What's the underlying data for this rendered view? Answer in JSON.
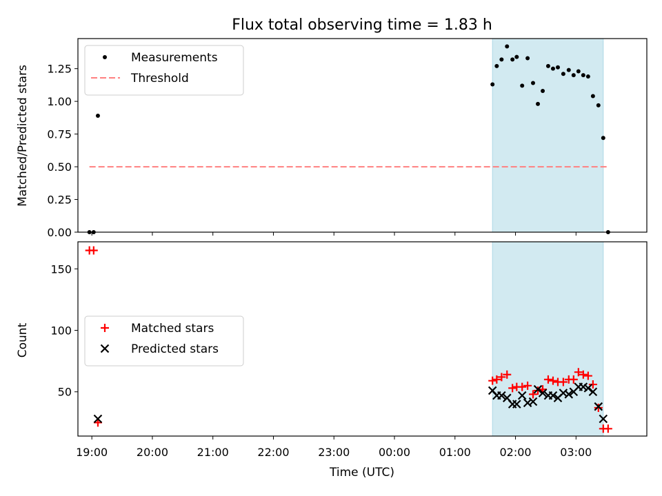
{
  "chart_data": {
    "type": "scatter",
    "title": "Flux total observing time = 1.83 h",
    "xlabel": "Time (UTC)",
    "x_unit": "hours after 18:00 UTC",
    "xlim": [
      18.77,
      28.17
    ],
    "xticks": [
      {
        "x": 19,
        "label": "19:00"
      },
      {
        "x": 20,
        "label": "20:00"
      },
      {
        "x": 21,
        "label": "21:00"
      },
      {
        "x": 22,
        "label": "22:00"
      },
      {
        "x": 23,
        "label": "23:00"
      },
      {
        "x": 24,
        "label": "00:00"
      },
      {
        "x": 25,
        "label": "01:00"
      },
      {
        "x": 26,
        "label": "02:00"
      },
      {
        "x": 27,
        "label": "03:00"
      }
    ],
    "highlight_span": {
      "x0": 25.62,
      "x1": 27.45,
      "color": "#add8e6"
    },
    "panels": [
      {
        "ylabel": "Matched/Predicted stars",
        "ylim": [
          0,
          1.48
        ],
        "yticks": [
          "0.00",
          "0.25",
          "0.50",
          "0.75",
          "1.00",
          "1.25"
        ],
        "legend": {
          "position": "top-left"
        },
        "series": [
          {
            "name": "Measurements",
            "kind": "dot",
            "color": "#000000",
            "points": [
              [
                18.96,
                0.0
              ],
              [
                19.03,
                0.0
              ],
              [
                19.1,
                0.89
              ],
              [
                25.62,
                1.13
              ],
              [
                25.69,
                1.27
              ],
              [
                25.77,
                1.32
              ],
              [
                25.86,
                1.42
              ],
              [
                25.95,
                1.32
              ],
              [
                26.02,
                1.34
              ],
              [
                26.11,
                1.12
              ],
              [
                26.2,
                1.33
              ],
              [
                26.29,
                1.14
              ],
              [
                26.37,
                0.98
              ],
              [
                26.45,
                1.08
              ],
              [
                26.54,
                1.27
              ],
              [
                26.62,
                1.25
              ],
              [
                26.7,
                1.26
              ],
              [
                26.79,
                1.21
              ],
              [
                26.88,
                1.24
              ],
              [
                26.96,
                1.2
              ],
              [
                27.04,
                1.23
              ],
              [
                27.12,
                1.2
              ],
              [
                27.2,
                1.19
              ],
              [
                27.28,
                1.04
              ],
              [
                27.37,
                0.97
              ],
              [
                27.45,
                0.72
              ],
              [
                27.53,
                0.0
              ]
            ]
          },
          {
            "name": "Threshold",
            "kind": "dashed-line",
            "color": "#ff7f7f",
            "y": 0.5,
            "x_range": [
              18.96,
              27.53
            ]
          }
        ]
      },
      {
        "ylabel": "Count",
        "ylim": [
          14,
          172
        ],
        "yticks": [
          "50",
          "100",
          "150"
        ],
        "legend": {
          "position": "center-left"
        },
        "series": [
          {
            "name": "Matched stars",
            "kind": "plus",
            "color": "#ff0000",
            "points": [
              [
                18.96,
                165
              ],
              [
                19.03,
                165
              ],
              [
                19.1,
                25
              ],
              [
                25.62,
                59
              ],
              [
                25.69,
                60
              ],
              [
                25.77,
                62
              ],
              [
                25.86,
                64
              ],
              [
                25.95,
                53
              ],
              [
                26.02,
                54
              ],
              [
                26.11,
                54
              ],
              [
                26.2,
                55
              ],
              [
                26.29,
                48
              ],
              [
                26.37,
                51
              ],
              [
                26.45,
                52
              ],
              [
                26.54,
                60
              ],
              [
                26.62,
                59
              ],
              [
                26.7,
                58
              ],
              [
                26.79,
                58
              ],
              [
                26.88,
                60
              ],
              [
                26.96,
                60
              ],
              [
                27.04,
                66
              ],
              [
                27.12,
                64
              ],
              [
                27.2,
                63
              ],
              [
                27.28,
                56
              ],
              [
                27.37,
                37
              ],
              [
                27.45,
                20
              ],
              [
                27.53,
                20
              ]
            ]
          },
          {
            "name": "Predicted stars",
            "kind": "cross",
            "color": "#000000",
            "points": [
              [
                19.1,
                28
              ],
              [
                25.62,
                51
              ],
              [
                25.69,
                47
              ],
              [
                25.77,
                47
              ],
              [
                25.86,
                45
              ],
              [
                25.95,
                40
              ],
              [
                26.02,
                40
              ],
              [
                26.11,
                47
              ],
              [
                26.2,
                41
              ],
              [
                26.29,
                42
              ],
              [
                26.37,
                52
              ],
              [
                26.45,
                49
              ],
              [
                26.54,
                47
              ],
              [
                26.62,
                47
              ],
              [
                26.7,
                45
              ],
              [
                26.79,
                49
              ],
              [
                26.88,
                48
              ],
              [
                26.96,
                50
              ],
              [
                27.04,
                54
              ],
              [
                27.12,
                54
              ],
              [
                27.2,
                53
              ],
              [
                27.28,
                50
              ],
              [
                27.37,
                38
              ],
              [
                27.45,
                28
              ]
            ]
          }
        ]
      }
    ]
  }
}
